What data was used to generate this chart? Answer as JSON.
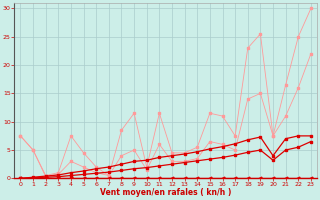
{
  "xlabel": "Vent moyen/en rafales ( kn/h )",
  "background_color": "#cceee8",
  "grid_color": "#aacccc",
  "xlim": [
    -0.5,
    23.5
  ],
  "ylim": [
    0,
    31
  ],
  "yticks": [
    0,
    5,
    10,
    15,
    20,
    25,
    30
  ],
  "xticks": [
    0,
    1,
    2,
    3,
    4,
    5,
    6,
    7,
    8,
    9,
    10,
    11,
    12,
    13,
    14,
    15,
    16,
    17,
    18,
    19,
    20,
    21,
    22,
    23
  ],
  "line1_x": [
    0,
    1,
    2,
    3,
    4,
    5,
    6,
    7,
    8,
    9,
    10,
    11,
    12,
    13,
    14,
    15,
    16,
    17,
    18,
    19,
    20,
    21,
    22,
    23
  ],
  "line1_y": [
    7.5,
    5.0,
    0.5,
    1.0,
    7.5,
    4.5,
    2.0,
    0.5,
    8.5,
    11.5,
    2.0,
    11.5,
    4.5,
    4.5,
    5.5,
    11.5,
    11.0,
    7.5,
    23.0,
    25.5,
    7.5,
    16.5,
    25.0,
    30.0
  ],
  "line1_color": "#ff9999",
  "line2_x": [
    0,
    1,
    2,
    3,
    4,
    5,
    6,
    7,
    8,
    9,
    10,
    11,
    12,
    13,
    14,
    15,
    16,
    17,
    18,
    19,
    20,
    21,
    22,
    23
  ],
  "line2_y": [
    7.5,
    5.0,
    0.3,
    0.7,
    3.0,
    2.0,
    1.0,
    0.5,
    4.0,
    5.0,
    1.5,
    6.0,
    3.0,
    3.0,
    3.5,
    6.5,
    6.0,
    5.0,
    14.0,
    15.0,
    7.5,
    11.0,
    16.0,
    22.0
  ],
  "line2_color": "#ff9999",
  "line3_x": [
    0,
    1,
    2,
    3,
    4,
    5,
    6,
    7,
    8,
    9,
    10,
    11,
    12,
    13,
    14,
    15,
    16,
    17,
    18,
    19,
    20,
    21,
    22,
    23
  ],
  "line3_y": [
    0.0,
    0.2,
    0.4,
    0.6,
    1.0,
    1.3,
    1.7,
    2.0,
    2.5,
    3.0,
    3.2,
    3.7,
    4.0,
    4.3,
    4.7,
    5.2,
    5.6,
    6.1,
    6.8,
    7.3,
    4.0,
    7.0,
    7.5,
    7.5
  ],
  "line3_color": "#dd0000",
  "line4_x": [
    0,
    1,
    2,
    3,
    4,
    5,
    6,
    7,
    8,
    9,
    10,
    11,
    12,
    13,
    14,
    15,
    16,
    17,
    18,
    19,
    20,
    21,
    22,
    23
  ],
  "line4_y": [
    0.0,
    0.1,
    0.2,
    0.3,
    0.5,
    0.7,
    0.9,
    1.1,
    1.4,
    1.7,
    1.9,
    2.2,
    2.5,
    2.8,
    3.1,
    3.4,
    3.7,
    4.1,
    4.6,
    5.0,
    3.2,
    5.0,
    5.5,
    6.5
  ],
  "line4_color": "#dd0000",
  "line5_x": [
    0,
    1,
    2,
    3,
    4,
    5,
    6,
    7,
    8,
    9,
    10,
    11,
    12,
    13,
    14,
    15,
    16,
    17,
    18,
    19,
    20,
    21,
    22,
    23
  ],
  "line5_y": [
    0.0,
    0.0,
    0.0,
    0.0,
    0.0,
    0.0,
    0.0,
    0.0,
    0.0,
    0.0,
    0.0,
    0.0,
    0.0,
    0.0,
    0.0,
    0.0,
    0.0,
    0.0,
    0.0,
    0.0,
    0.0,
    0.0,
    0.0,
    0.0
  ],
  "line5_color": "#dd0000",
  "axis_label_color": "#cc0000",
  "tick_label_color": "#cc0000",
  "tick_label_size": 4.5,
  "xlabel_size": 5.5,
  "marker_size": 2.0,
  "line_width": 0.6
}
